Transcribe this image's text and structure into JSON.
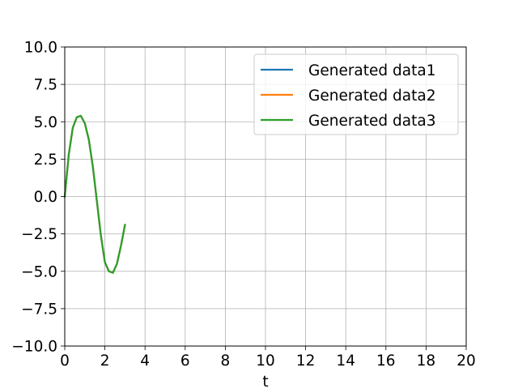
{
  "chart_data": {
    "type": "line",
    "title": "",
    "xlabel": "t",
    "ylabel": "",
    "xlim": [
      0,
      20
    ],
    "ylim": [
      -10,
      10
    ],
    "xticks": [
      0,
      2,
      4,
      6,
      8,
      10,
      12,
      14,
      16,
      18,
      20
    ],
    "yticks": [
      10.0,
      7.5,
      5.0,
      2.5,
      0.0,
      -2.5,
      -5.0,
      -7.5,
      -10.0
    ],
    "xtick_labels": [
      "0",
      "2",
      "4",
      "6",
      "8",
      "10",
      "12",
      "14",
      "16",
      "18",
      "20"
    ],
    "ytick_labels": [
      "10.0",
      "7.5",
      "5.0",
      "2.5",
      "0.0",
      "−2.5",
      "−5.0",
      "−7.5",
      "−10.0"
    ],
    "grid": true,
    "legend_position": "top-right",
    "x": [
      0.0,
      0.2,
      0.4,
      0.6,
      0.8,
      1.0,
      1.2,
      1.4,
      1.6,
      1.8,
      2.0,
      2.2,
      2.4,
      2.6,
      2.8,
      3.0
    ],
    "series": [
      {
        "name": "Generated data1",
        "color": "#1f77b4",
        "values": [
          0.0,
          2.8,
          4.6,
          5.3,
          5.4,
          4.9,
          3.8,
          2.0,
          -0.3,
          -2.6,
          -4.4,
          -5.0,
          -5.1,
          -4.5,
          -3.3,
          -1.9
        ]
      },
      {
        "name": "Generated data2",
        "color": "#ff7f0e",
        "values": [
          0.0,
          2.8,
          4.6,
          5.3,
          5.4,
          4.9,
          3.8,
          2.0,
          -0.3,
          -2.6,
          -4.4,
          -5.0,
          -5.1,
          -4.5,
          -3.3,
          -1.9
        ]
      },
      {
        "name": "Generated data3",
        "color": "#2ca02c",
        "values": [
          0.0,
          2.8,
          4.6,
          5.3,
          5.4,
          4.9,
          3.8,
          2.0,
          -0.3,
          -2.6,
          -4.4,
          -5.0,
          -5.1,
          -4.5,
          -3.3,
          -1.9
        ]
      }
    ]
  }
}
